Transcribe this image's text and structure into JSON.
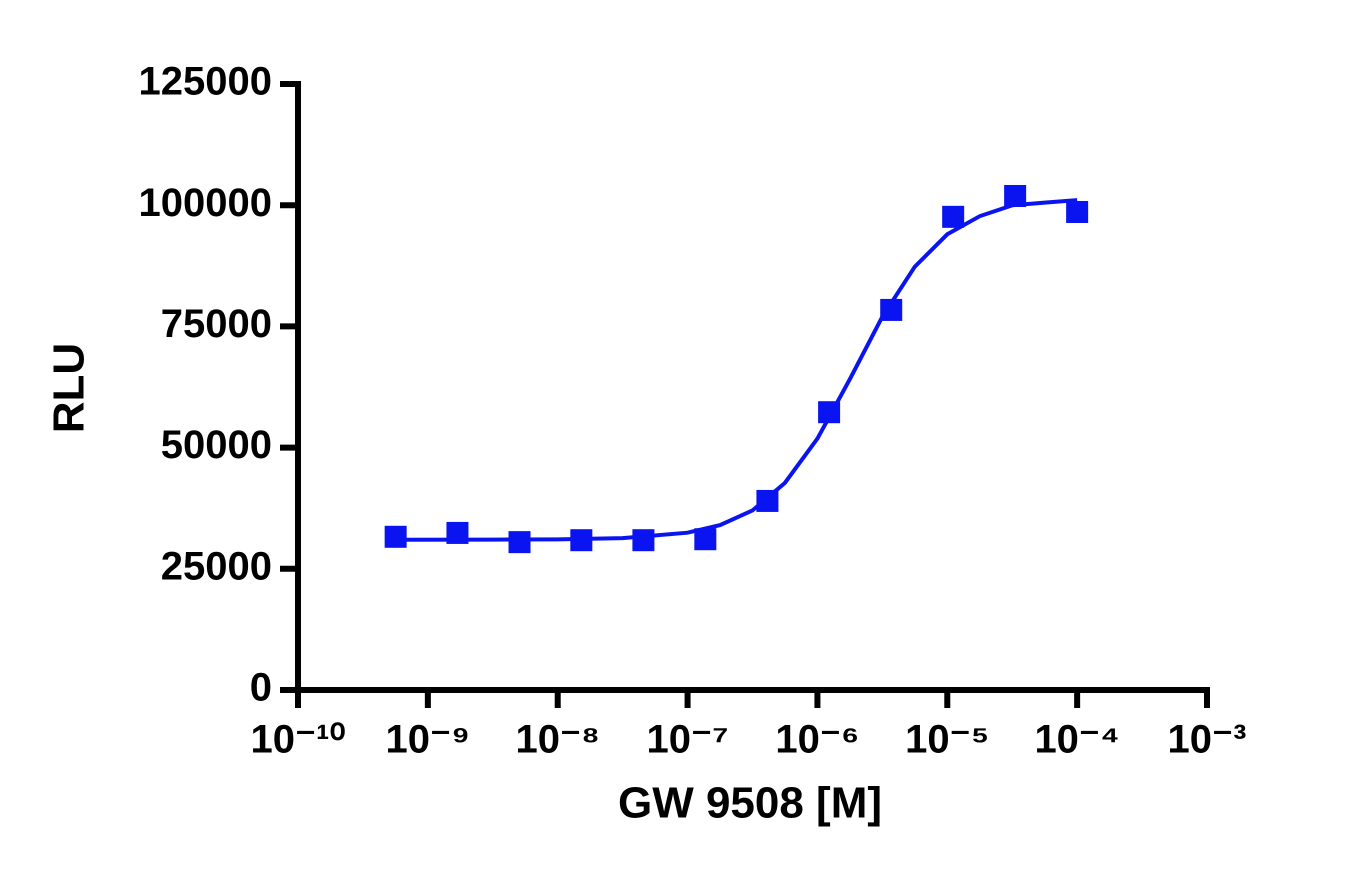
{
  "chart_data": {
    "type": "dose-response",
    "xlabel": "GW 9508 [M]",
    "ylabel": "RLU",
    "xscale": "log",
    "xlim": [
      1e-10,
      0.001
    ],
    "xticks": [
      {
        "value": 1e-10,
        "label": "10⁻¹⁰"
      },
      {
        "value": 1e-09,
        "label": "10⁻⁹"
      },
      {
        "value": 1e-08,
        "label": "10⁻⁸"
      },
      {
        "value": 1e-07,
        "label": "10⁻⁷"
      },
      {
        "value": 1e-06,
        "label": "10⁻⁶"
      },
      {
        "value": 1e-05,
        "label": "10⁻⁵"
      },
      {
        "value": 0.0001,
        "label": "10⁻⁴"
      },
      {
        "value": 0.001,
        "label": "10⁻³"
      }
    ],
    "ylim": [
      0,
      125000
    ],
    "yticks": [
      0,
      25000,
      50000,
      75000,
      100000,
      125000
    ],
    "series": [
      {
        "kind": "points",
        "color": "#0a14f0",
        "x": [
          5.65e-10,
          1.69e-09,
          5.08e-09,
          1.52e-08,
          4.57e-08,
          1.37e-07,
          4.12e-07,
          1.23e-06,
          3.7e-06,
          1.11e-05,
          3.33e-05,
          0.0001
        ],
        "values": [
          31600,
          32400,
          30500,
          30900,
          30900,
          31100,
          39000,
          57300,
          78400,
          97600,
          101900,
          98600
        ]
      },
      {
        "kind": "curve",
        "color": "#0a14f0",
        "x": [
          5.62e-10,
          3.16e-09,
          1e-08,
          3.16e-08,
          1e-07,
          1.78e-07,
          3.16e-07,
          5.62e-07,
          1e-06,
          1.78e-06,
          3.16e-06,
          5.62e-06,
          1e-05,
          1.78e-05,
          3.16e-05,
          5.62e-05,
          0.0001
        ],
        "values": [
          31000,
          31020,
          31070,
          31330,
          32450,
          34010,
          37030,
          42730,
          51860,
          64150,
          76990,
          87310,
          94000,
          97740,
          99980,
          100520,
          101040
        ]
      }
    ]
  }
}
